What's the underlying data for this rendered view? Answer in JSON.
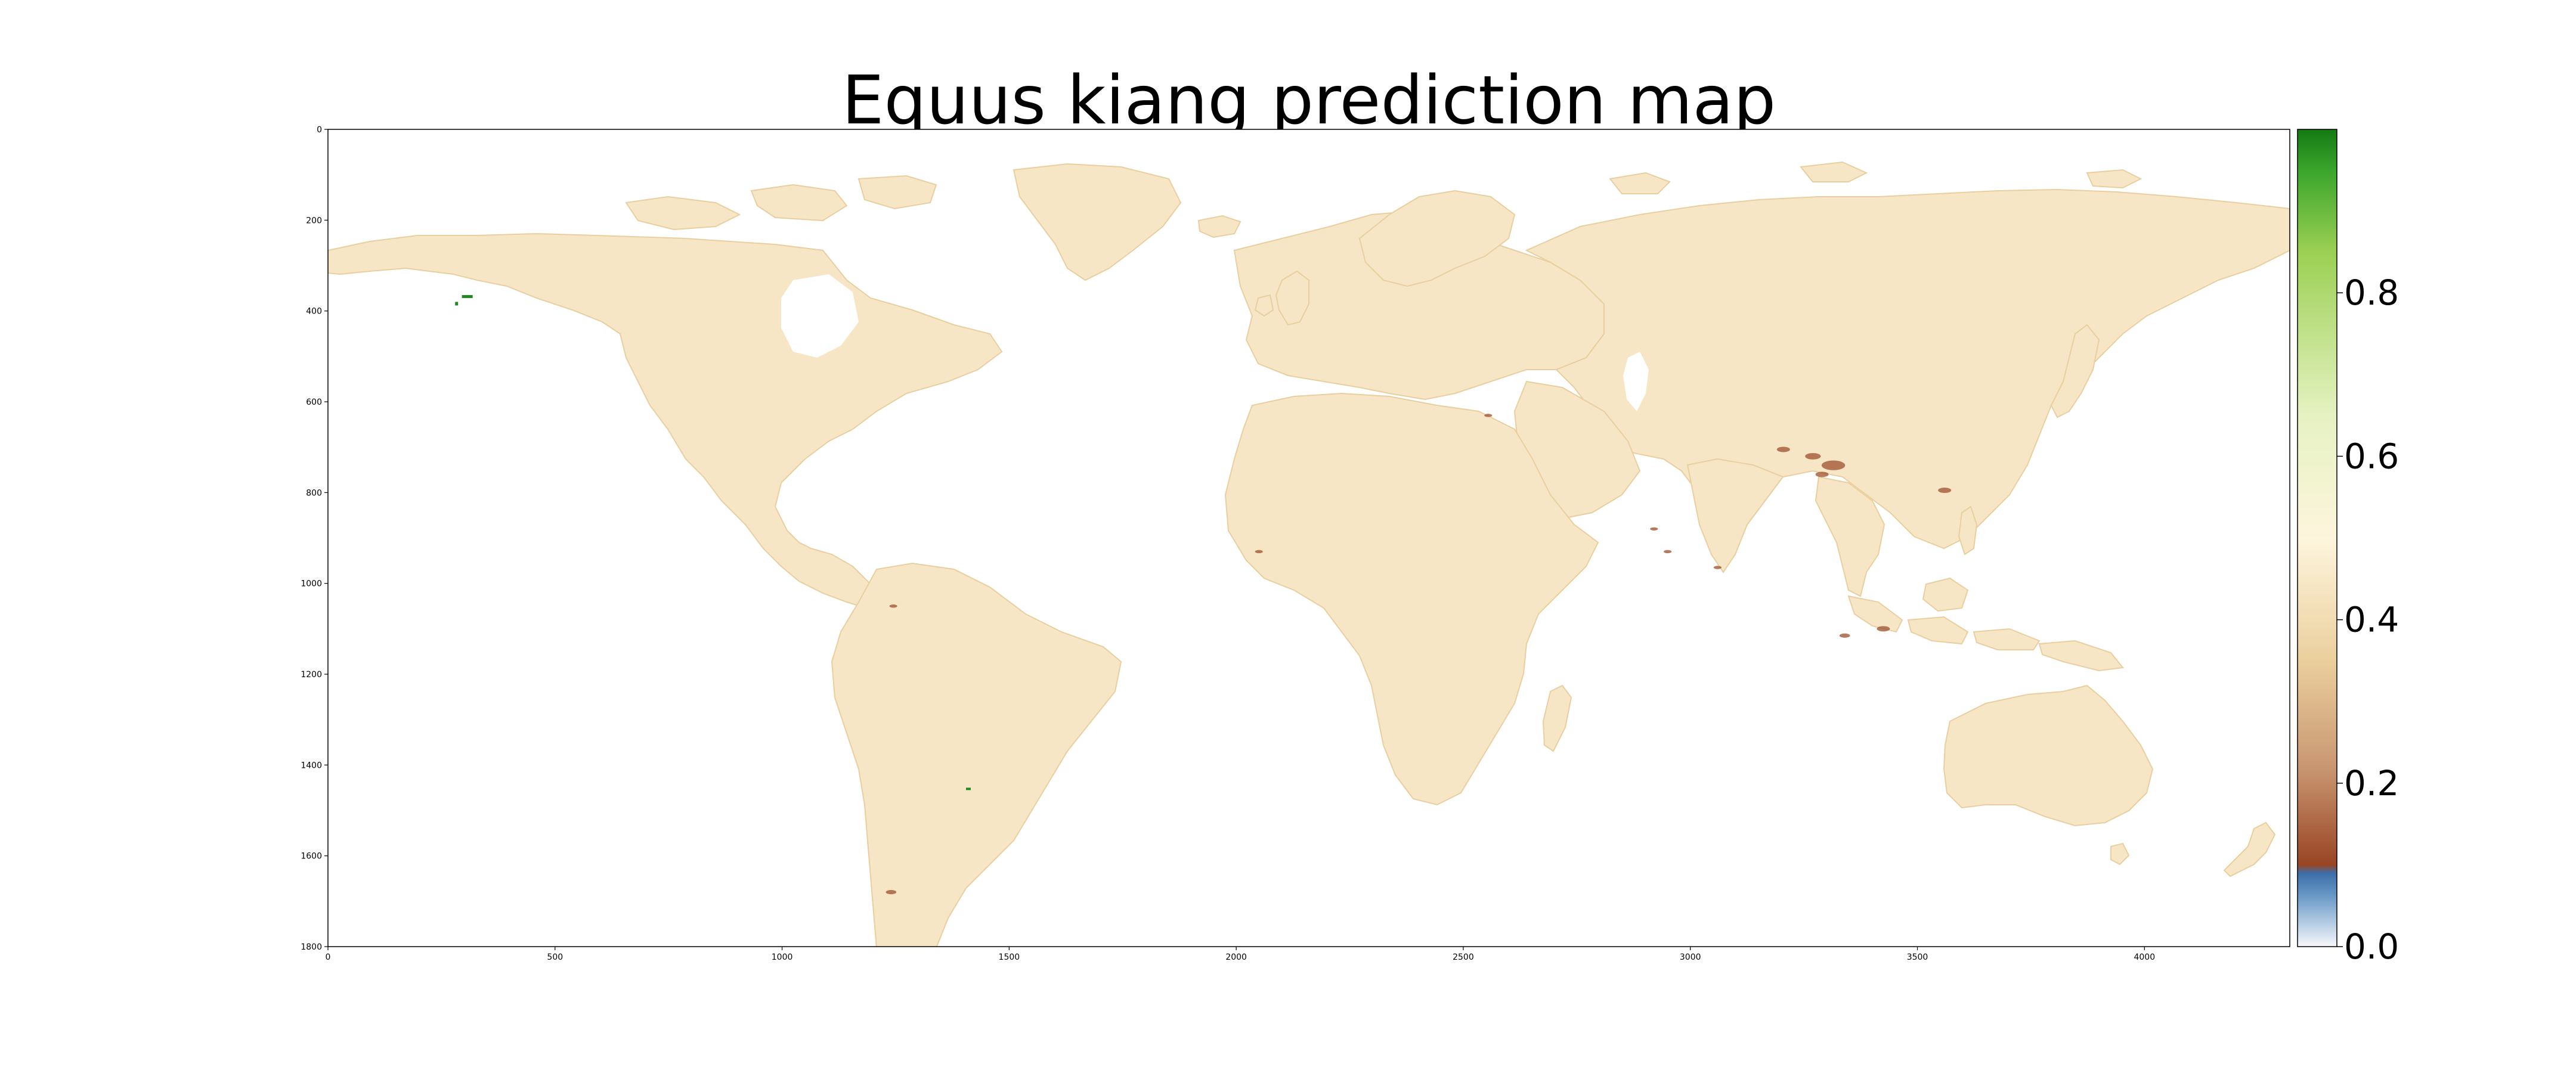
{
  "title": "Equus kiang prediction map",
  "colors": {
    "land": "#f6e6c6",
    "land_edge": "#e9cf9f",
    "low_hotspot": "#9c4f2c",
    "high_hotspot": "#1f8a1f",
    "frame": "#000000",
    "background": "#ffffff"
  },
  "map_axes": {
    "x_range": [
      0,
      4320
    ],
    "y_range": [
      1800,
      0
    ],
    "x_ticks": [
      0,
      500,
      1000,
      1500,
      2000,
      2500,
      3000,
      3500,
      4000
    ],
    "x_tick_labels": [
      "0",
      "500",
      "1000",
      "1500",
      "2000",
      "2500",
      "3000",
      "3500",
      "4000"
    ],
    "y_ticks": [
      0,
      200,
      400,
      600,
      800,
      1000,
      1200,
      1400,
      1600,
      1800
    ],
    "y_tick_labels": [
      "0",
      "200",
      "400",
      "600",
      "800",
      "1000",
      "1200",
      "1400",
      "1600",
      "1800"
    ]
  },
  "colorbar": {
    "range": [
      0.0,
      1.0
    ],
    "ticks": [
      0.0,
      0.2,
      0.4,
      0.6,
      0.8
    ],
    "tick_labels": [
      "0.0",
      "0.2",
      "0.4",
      "0.6",
      "0.8"
    ],
    "stops": [
      {
        "value": 0.0,
        "color": "#f7f7fb"
      },
      {
        "value": 0.06,
        "color": "#6d9cc9"
      },
      {
        "value": 0.09,
        "color": "#3c6ea8"
      },
      {
        "value": 0.1,
        "color": "#9a4524"
      },
      {
        "value": 0.22,
        "color": "#c99772"
      },
      {
        "value": 0.35,
        "color": "#ebcf9d"
      },
      {
        "value": 0.5,
        "color": "#fdf5dd"
      },
      {
        "value": 0.65,
        "color": "#e6f2c2"
      },
      {
        "value": 0.85,
        "color": "#9bd053"
      },
      {
        "value": 0.95,
        "color": "#3aa52c"
      },
      {
        "value": 1.0,
        "color": "#147a14"
      }
    ]
  },
  "hotspots_low": [
    {
      "x": 3315,
      "y": 740,
      "r": 9
    },
    {
      "x": 3270,
      "y": 720,
      "r": 6
    },
    {
      "x": 3205,
      "y": 705,
      "r": 5
    },
    {
      "x": 3290,
      "y": 760,
      "r": 5
    },
    {
      "x": 3560,
      "y": 795,
      "r": 5
    },
    {
      "x": 3425,
      "y": 1100,
      "r": 5
    },
    {
      "x": 3340,
      "y": 1115,
      "r": 4
    },
    {
      "x": 2920,
      "y": 880,
      "r": 3
    },
    {
      "x": 2950,
      "y": 930,
      "r": 3
    },
    {
      "x": 1240,
      "y": 1680,
      "r": 4
    },
    {
      "x": 1245,
      "y": 1050,
      "r": 3
    },
    {
      "x": 2555,
      "y": 630,
      "r": 3
    },
    {
      "x": 2050,
      "y": 930,
      "r": 3
    },
    {
      "x": 3060,
      "y": 965,
      "r": 3
    }
  ],
  "hotspots_high": [
    {
      "x": 295,
      "y": 365,
      "w": 18,
      "h": 5
    },
    {
      "x": 280,
      "y": 380,
      "w": 5,
      "h": 6
    },
    {
      "x": 1405,
      "y": 1450,
      "w": 8,
      "h": 4
    }
  ]
}
